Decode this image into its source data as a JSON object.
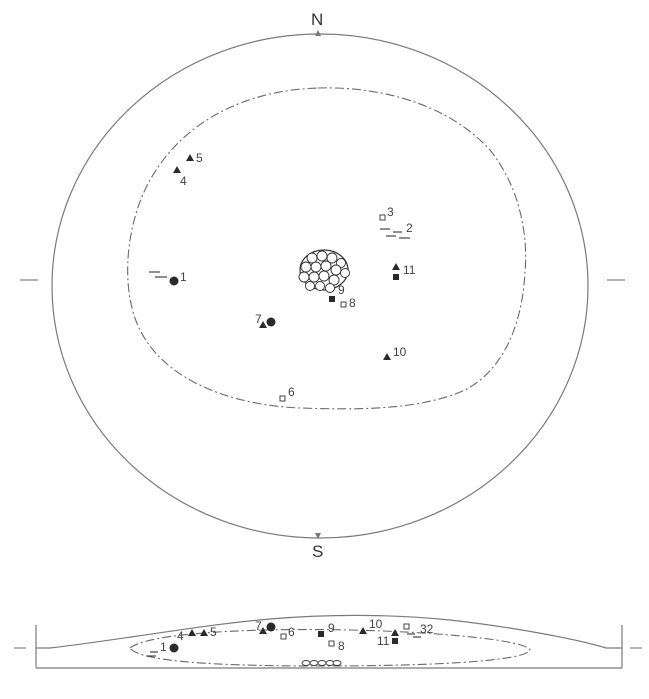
{
  "plan": {
    "north_label": "N",
    "south_label": "S"
  },
  "finds": [
    {
      "id": "1",
      "label": "1",
      "symbol": "filled-circle-with-bars"
    },
    {
      "id": "2",
      "label": "2",
      "symbol": "bars"
    },
    {
      "id": "3",
      "label": "3",
      "symbol": "open-square"
    },
    {
      "id": "4",
      "label": "4",
      "symbol": "filled-triangle"
    },
    {
      "id": "5",
      "label": "5",
      "symbol": "filled-triangle"
    },
    {
      "id": "6",
      "label": "6",
      "symbol": "open-square"
    },
    {
      "id": "7",
      "label": "7",
      "symbol": "filled-triangle-and-circle"
    },
    {
      "id": "8",
      "label": "8",
      "symbol": "open-square"
    },
    {
      "id": "9",
      "label": "9",
      "symbol": "filled-square"
    },
    {
      "id": "10",
      "label": "10",
      "symbol": "filled-triangle"
    },
    {
      "id": "11",
      "label": "11",
      "symbol": "filled-triangle-and-square"
    }
  ],
  "section": {
    "labels": {
      "s1": "1",
      "s4": "4",
      "s5": "5",
      "s7": "7",
      "s6": "6",
      "s9": "9",
      "s8": "8",
      "s10": "10",
      "s11": "11",
      "s32": "32"
    }
  }
}
